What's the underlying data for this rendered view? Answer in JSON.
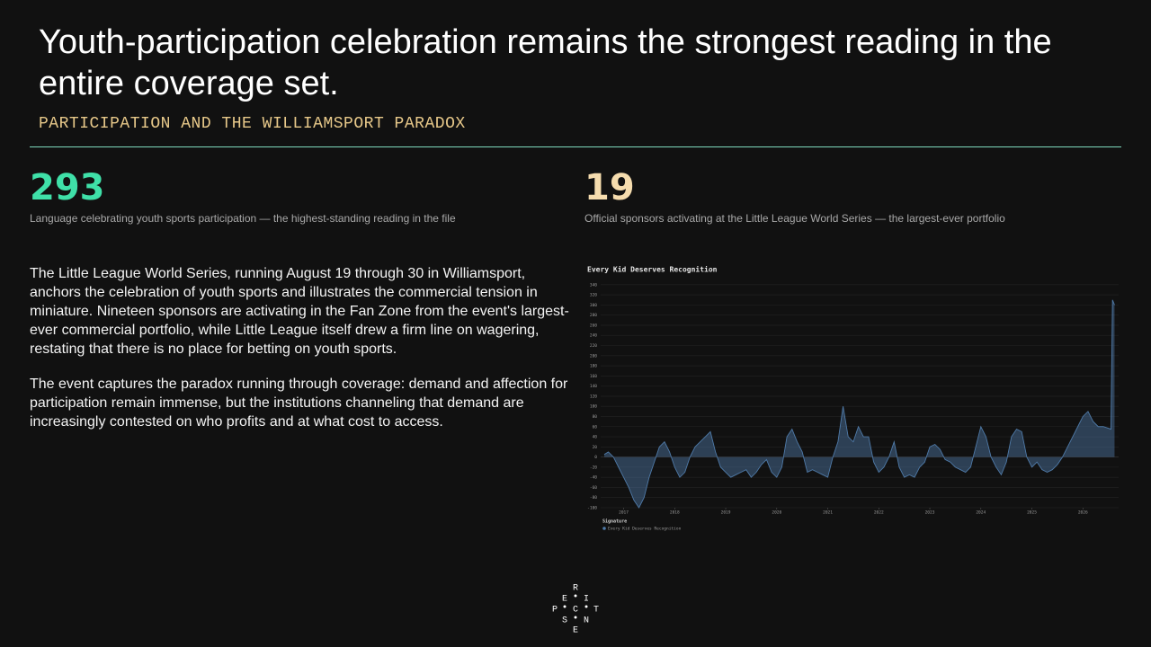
{
  "header": {
    "title": "Youth-participation celebration remains the strongest reading in the entire coverage set.",
    "subtitle": "PARTICIPATION AND THE WILLIAMSPORT PARADOX"
  },
  "stats": [
    {
      "value": 293,
      "caption": "Language celebrating youth sports participation — the highest-standing reading in the file"
    },
    {
      "value": 19,
      "caption": "Official sponsors activating at the Little League World Series — the largest-ever portfolio"
    }
  ],
  "body": [
    "The Little League World Series, running August 19 through 30 in Williamsport, anchors the celebration of youth sports and illustrates the commercial tension in miniature. Nineteen sponsors are activating in the Fan Zone from the event's largest-ever commercial portfolio, while Little League itself drew a firm line on wagering, restating that there is no place for betting on youth sports.",
    "The event captures the paradox running through coverage: demand and affection for participation remain immense, but the institutions channeling that demand are increasingly contested on who profits and at what cost to access."
  ],
  "chart_data": {
    "type": "area",
    "title": "Every Kid Deserves Recognition",
    "legend_title": "Signature",
    "x": [
      2016.62,
      2016.7,
      2016.8,
      2016.9,
      2017.0,
      2017.1,
      2017.2,
      2017.3,
      2017.4,
      2017.5,
      2017.6,
      2017.7,
      2017.8,
      2017.9,
      2018.0,
      2018.1,
      2018.2,
      2018.3,
      2018.4,
      2018.5,
      2018.6,
      2018.7,
      2018.8,
      2018.9,
      2019.0,
      2019.1,
      2019.2,
      2019.3,
      2019.4,
      2019.5,
      2019.6,
      2019.7,
      2019.8,
      2019.9,
      2020.0,
      2020.1,
      2020.2,
      2020.3,
      2020.4,
      2020.5,
      2020.6,
      2020.7,
      2020.8,
      2020.9,
      2021.0,
      2021.1,
      2021.2,
      2021.3,
      2021.4,
      2021.5,
      2021.6,
      2021.7,
      2021.8,
      2021.9,
      2022.0,
      2022.1,
      2022.2,
      2022.3,
      2022.4,
      2022.5,
      2022.6,
      2022.7,
      2022.8,
      2022.9,
      2023.0,
      2023.1,
      2023.2,
      2023.3,
      2023.4,
      2023.5,
      2023.6,
      2023.7,
      2023.8,
      2023.9,
      2024.0,
      2024.1,
      2024.2,
      2024.3,
      2024.4,
      2024.5,
      2024.6,
      2024.7,
      2024.8,
      2024.9,
      2025.0,
      2025.1,
      2025.2,
      2025.3,
      2025.4,
      2025.5,
      2025.6,
      2025.7,
      2025.8,
      2025.9,
      2026.0,
      2026.1,
      2026.2,
      2026.3,
      2026.4,
      2026.55,
      2026.58,
      2026.62
    ],
    "series": [
      {
        "name": "Every Kid Deserves Recognition",
        "color": "#4f7aa8",
        "values": [
          5,
          10,
          0,
          -20,
          -40,
          -60,
          -85,
          -100,
          -80,
          -40,
          -10,
          20,
          30,
          10,
          -20,
          -40,
          -30,
          0,
          20,
          30,
          40,
          50,
          10,
          -20,
          -30,
          -40,
          -35,
          -30,
          -25,
          -40,
          -30,
          -15,
          -5,
          -30,
          -40,
          -20,
          40,
          55,
          30,
          10,
          -30,
          -25,
          -30,
          -35,
          -40,
          0,
          30,
          100,
          40,
          30,
          60,
          40,
          40,
          -10,
          -30,
          -20,
          0,
          30,
          -20,
          -40,
          -35,
          -40,
          -20,
          -10,
          20,
          25,
          15,
          -5,
          -10,
          -20,
          -25,
          -30,
          -20,
          20,
          60,
          40,
          0,
          -20,
          -35,
          -10,
          40,
          55,
          50,
          0,
          -20,
          -10,
          -25,
          -30,
          -25,
          -15,
          0,
          20,
          40,
          60,
          80,
          90,
          70,
          60,
          60,
          55,
          310,
          300
        ]
      }
    ],
    "xlim": [
      2016.55,
      2026.7
    ],
    "xticks": [
      2017,
      2018,
      2019,
      2020,
      2021,
      2022,
      2023,
      2024,
      2025,
      2026
    ],
    "ylim": [
      -100,
      345
    ],
    "yticks": [
      -100,
      -80,
      -60,
      -40,
      -20,
      0,
      20,
      40,
      60,
      80,
      100,
      120,
      140,
      160,
      180,
      200,
      220,
      240,
      260,
      280,
      300,
      320,
      340
    ],
    "grid": true
  },
  "logo": [
    "R",
    "E",
    "I",
    "P",
    "C",
    "T",
    "S",
    "N",
    "E"
  ]
}
